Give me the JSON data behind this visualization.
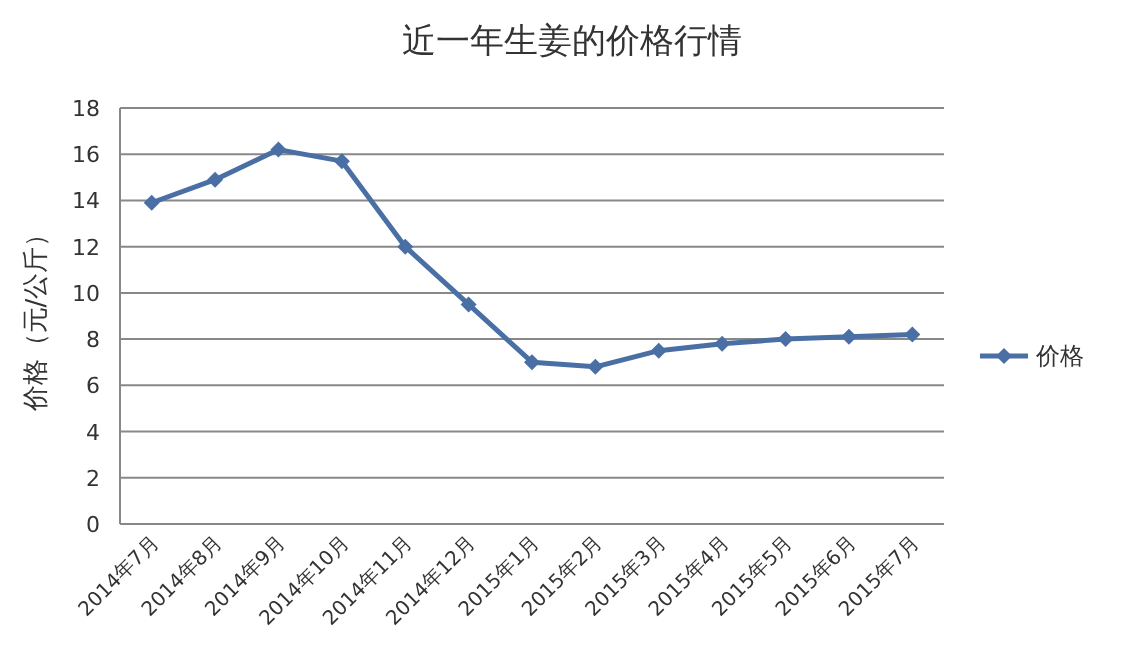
{
  "chart_data": {
    "type": "line",
    "title": "近一年生姜的价格行情",
    "ylabel": "价格（元/公斤）",
    "categories": [
      "2014年7月",
      "2014年8月",
      "2014年9月",
      "2014年10月",
      "2014年11月",
      "2014年12月",
      "2015年1月",
      "2015年2月",
      "2015年3月",
      "2015年4月",
      "2015年5月",
      "2015年6月",
      "2015年7月"
    ],
    "series": [
      {
        "name": "价格",
        "color": "#4a6fa5",
        "values": [
          13.9,
          14.9,
          16.2,
          15.7,
          12.0,
          9.5,
          7.0,
          6.8,
          7.5,
          7.8,
          8.0,
          8.1,
          8.2
        ]
      }
    ],
    "ylim": [
      0,
      18
    ],
    "yticks": [
      0,
      2,
      4,
      6,
      8,
      10,
      12,
      14,
      16,
      18
    ],
    "grid": "y",
    "legend": "right",
    "marker": "diamond",
    "line_style": "solid"
  }
}
